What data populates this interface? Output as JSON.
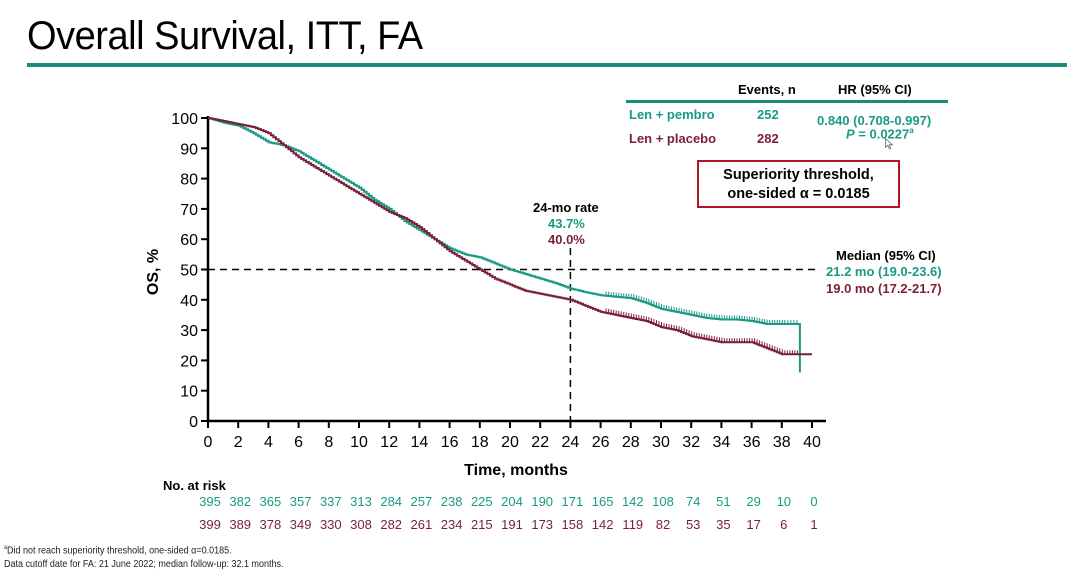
{
  "slide": {
    "title": "Overall Survival, ITT, FA",
    "accent_color": "#1a8c7a"
  },
  "legend": {
    "col_events": "Events, n",
    "col_hr": "HR (95% CI)",
    "rows": [
      {
        "label": "Len + pembro",
        "events": "252",
        "color": "#1a9a85"
      },
      {
        "label": "Len + placebo",
        "events": "282",
        "color": "#7a1f3a"
      }
    ],
    "hr_value": "0.840 (0.708-0.997)",
    "p_label": "P",
    "p_value": " = 0.0227",
    "p_superscript": "a"
  },
  "threshold_box": {
    "line1": "Superiority threshold,",
    "line2": "one-sided α = 0.0185",
    "border_color": "#b0141c"
  },
  "rate_annotation": {
    "title": "24-mo rate",
    "pembro": "43.7%",
    "placebo": "40.0%"
  },
  "median_annotation": {
    "title": "Median (95% CI)",
    "pembro": "21.2 mo (19.0-23.6)",
    "placebo": "19.0 mo (17.2-21.7)"
  },
  "risk_table": {
    "title": "No. at risk",
    "pembro": [
      "395",
      "382",
      "365",
      "357",
      "337",
      "313",
      "284",
      "257",
      "238",
      "225",
      "204",
      "190",
      "171",
      "165",
      "142",
      "108",
      "74",
      "51",
      "29",
      "10",
      "0"
    ],
    "placebo": [
      "399",
      "389",
      "378",
      "349",
      "330",
      "308",
      "282",
      "261",
      "234",
      "215",
      "191",
      "173",
      "158",
      "142",
      "119",
      "82",
      "53",
      "35",
      "17",
      "6",
      "1"
    ]
  },
  "footnotes": {
    "line1_sup": "a",
    "line1": "Did not reach superiority threshold, one-sided α=0.0185.",
    "line2": "Data cutoff date for FA: 21 June 2022; median follow-up: 32.1 months."
  },
  "chart_data": {
    "type": "line",
    "title": "Overall Survival, ITT, FA",
    "xlabel": "Time, months",
    "ylabel": "OS, %",
    "xlim": [
      0,
      40
    ],
    "ylim": [
      0,
      100
    ],
    "xticks": [
      0,
      2,
      4,
      6,
      8,
      10,
      12,
      14,
      16,
      18,
      20,
      22,
      24,
      26,
      28,
      30,
      32,
      34,
      36,
      38,
      40
    ],
    "yticks": [
      0,
      10,
      20,
      30,
      40,
      50,
      60,
      70,
      80,
      90,
      100
    ],
    "grid": false,
    "reference_lines": {
      "horizontal_y": 50,
      "vertical_x": 24
    },
    "series": [
      {
        "name": "Len + pembro",
        "color": "#1a9a85",
        "step": true,
        "x": [
          0,
          1,
          2,
          3,
          4,
          5,
          6,
          7,
          8,
          9,
          10,
          11,
          12,
          13,
          14,
          15,
          16,
          17,
          18,
          19,
          20,
          21,
          22,
          23,
          24,
          25,
          26,
          27,
          28,
          29,
          30,
          31,
          32,
          33,
          34,
          35,
          36,
          37,
          38,
          39.2,
          39.2
        ],
        "y": [
          100,
          98.5,
          97.5,
          95,
          92,
          91,
          89,
          86,
          83,
          80,
          77,
          73,
          70,
          66,
          63,
          60,
          57,
          55,
          54,
          52,
          50,
          48.5,
          47,
          45.5,
          43.7,
          42.5,
          41.5,
          41,
          40.5,
          39,
          37,
          36,
          35,
          34,
          33.5,
          33.5,
          33,
          32,
          32,
          32,
          16
        ]
      },
      {
        "name": "Len + placebo",
        "color": "#7a1f3a",
        "step": true,
        "x": [
          0,
          1,
          2,
          3,
          4,
          5,
          6,
          7,
          8,
          9,
          10,
          11,
          12,
          13,
          14,
          15,
          16,
          17,
          18,
          19,
          20,
          21,
          22,
          23,
          24,
          25,
          26,
          27,
          28,
          29,
          30,
          31,
          32,
          33,
          34,
          35,
          36,
          37,
          38,
          39,
          40
        ],
        "y": [
          100,
          99,
          98,
          97,
          95,
          91,
          87,
          84,
          81,
          78,
          75,
          72,
          69,
          67,
          64,
          60,
          56,
          53,
          50,
          47,
          45,
          43,
          42,
          41,
          40,
          38,
          36,
          35,
          34,
          33,
          31,
          30,
          28,
          27,
          26,
          26,
          26,
          24,
          22,
          22,
          22
        ]
      }
    ],
    "legend_placement": "top-right"
  }
}
